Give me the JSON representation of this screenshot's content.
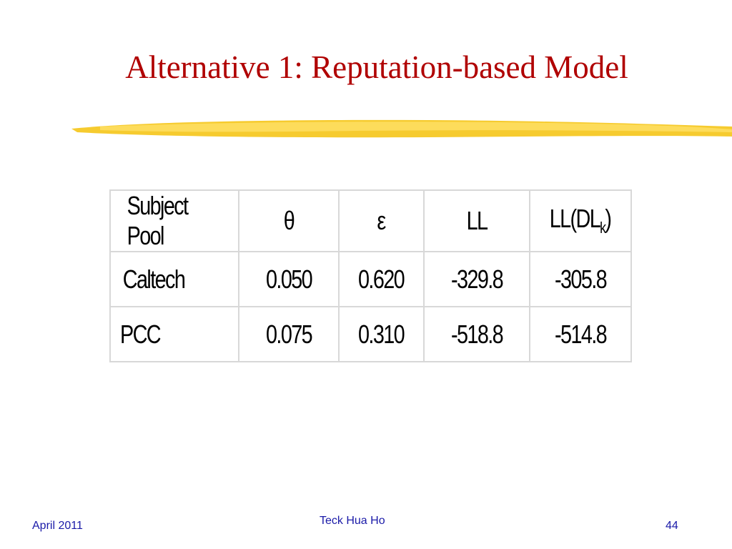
{
  "title": "Alternative 1: Reputation-based Model",
  "table": {
    "header": [
      "Subject Pool",
      "θ",
      "ε",
      "LL",
      {
        "text": "LL(DL",
        "sub": "k",
        "tail": ")"
      }
    ],
    "rows": [
      [
        "Caltech",
        "0.050",
        "0.620",
        "-329.8",
        "-305.8"
      ],
      [
        "PCC",
        "0.075",
        "0.310",
        "-518.8",
        "-514.8"
      ]
    ]
  },
  "footer": {
    "date": "April 2011",
    "author": "Teck Hua Ho",
    "page": "44"
  }
}
